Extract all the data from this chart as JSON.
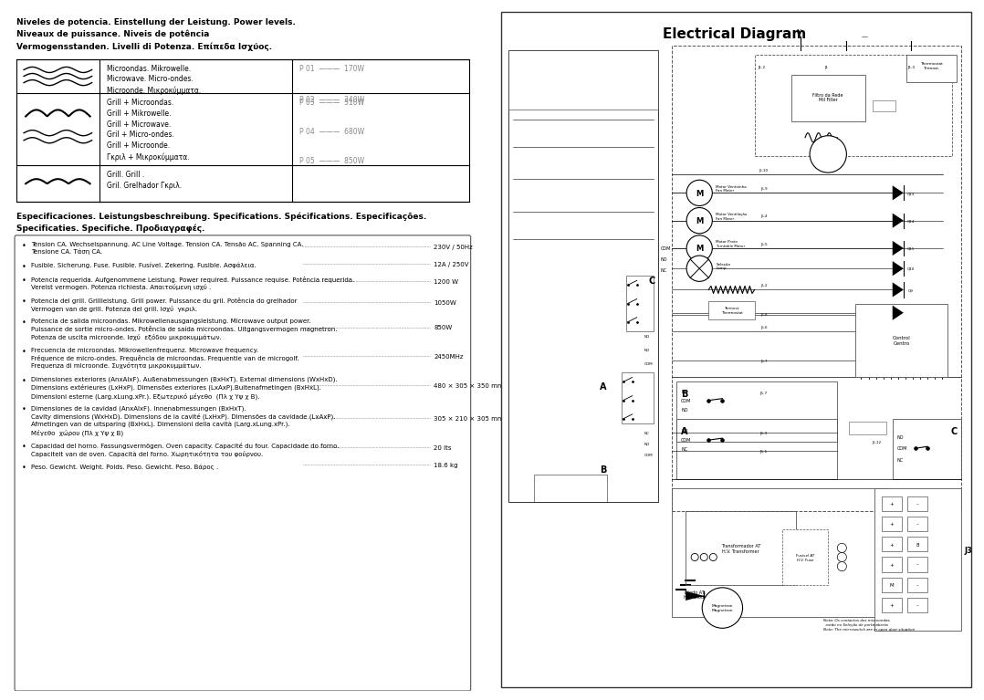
{
  "page_bg": "#ffffff",
  "left_panel": {
    "title_line1": "Niveles de potencia. Einstellung der Leistung. Power levels.",
    "title_line2": "Niveaux de puissance. Niveis de potência",
    "title_line3": "Vermogensstanden. Livelli di Potenza. Επίπεδα Ισχύος.",
    "table_row1_desc": "Microondas. Mikrowelle.\nMicrowave. Micro-ondes.\nMicroonde. Μικροκύμματα.",
    "table_row1_powers": [
      "P 01  ———  170W",
      "P 02  ———  340W"
    ],
    "table_row2_desc": "Grill + Microondas.\nGrill + Mikrowelle.\nGrill + Microwave.\nGril + Micro-ondes.\nGrill + Microonde.\nΓκριλ + Μικροκύμματα.",
    "table_row2_powers": [
      "P 03  ———  510W",
      "P 04  ———  680W",
      "P 05  ———  850W"
    ],
    "table_row3_desc": "Grill. Grill .\nGril. Grelhador Γκριλ.",
    "specs_title_line1": "Especificaciones. Leistungsbeschreibung. Specifications. Spécifications. Especificações.",
    "specs_title_line2": "Specificaties. Specifiche. Προδιαγραφές.",
    "specs": [
      {
        "text": "Tension CA. Wechselspannung. AC Line Voltage. Tension CA. Tensão AC. Spanning CA.\nTensione CA. Tάση CA.",
        "value": "230V / 50Hz",
        "lines": 2
      },
      {
        "text": "Fusible. Sicherung. Fuse. Fusible. Fusível. Zekering. Fusible. Ασφάλεια.",
        "value": "12A / 250V",
        "lines": 1
      },
      {
        "text": "Potencia requerida. Aufgenommene Leistung. Power required. Puissance requise. Potência requerida.\nVereist vermogen. Potenza richiesta. Απαιτούμενη ισχύ .",
        "value": "1200 W",
        "lines": 2
      },
      {
        "text": "Potencia del grill. Grillleistung. Grill power. Puissance du gril. Potência do grelhador\nVermogen van de grill. Potenza del grill. Ισχύ  γκριλ.",
        "value": "1050W",
        "lines": 2
      },
      {
        "text": "Potencia de salida microondas. Mikrowellenausgangsleistung. Microwave output power.\nPuissance de sortie micro-ondes. Potência de saída microondas. Uitgangsvermogen magnetron.\nPotenza de uscita microonde. Ισχύ  εξόδου μικροκυμμάτων.",
        "value": "850W",
        "lines": 3
      },
      {
        "text": "Frecuencia de microondas. Mikrowellenfrequenz. Microwave frequency.\nFréquence de micro-ondes. Frequência de microondas. Frequentie van de microgolf.\nFrequenza di microonde. Συχνότητα μικροκυμμάτων.",
        "value": "2450MHz",
        "lines": 3
      },
      {
        "text": "Dimensiones exteriores (AnxAlxF). Außenabmessungen (BxHxT). External dimensions (WxHxD).\nDimensions extérieures (LxHxP). Dimensões exteriores (LxAxP).Buitenafmetingen (BxHxL).\nDimensioni esterne (Larg.xLung.xPr.). Εξωτερικό μέγεθο  (Πλ χ Υψ χ Β).",
        "value": "480 × 305 × 350 mm",
        "lines": 3
      },
      {
        "text": "Dimensiones de la cavidad (AnxAlxF). Innenabmessungen (BxHxT).\nCavity dimensions (WxHxD). Dimensions de la cavité (LxHxP). Dimensões da cavidade (LxAxP).\nAfmetingen van de uitsparing (BxHxL). Dimensioni della cavità (Larg.xLung.xPr.).\nMέγεθο  χώρου (Πλ χ Υψ χ Β)",
        "value": "305 × 210 × 305 mm",
        "lines": 4
      },
      {
        "text": "Capacidad del horno. Fassungsvermögen. Oven capacity. Capacité du four. Capacidade do forno.\nCapaciteit van de oven. Capacità del forno. Χωρητικότητα του φούρνου.",
        "value": "20 lts",
        "lines": 2
      },
      {
        "text": "Peso. Gewicht. Weight. Poids. Peso. Gewicht. Peso. Βάρος .",
        "value": "18.6 kg",
        "lines": 1
      }
    ]
  },
  "right_panel": {
    "title": "Electrical Diagram"
  }
}
